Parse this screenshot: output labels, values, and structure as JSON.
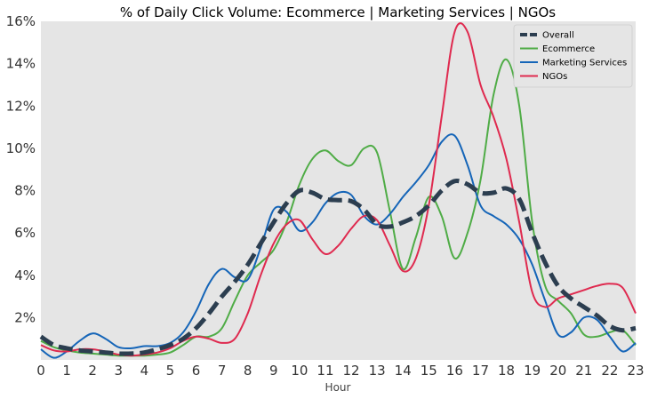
{
  "chart_data": {
    "type": "line",
    "title": "% of Daily Click Volume: Ecommerce | Marketing Services | NGOs",
    "xlabel": "Hour",
    "ylabel": "",
    "xlim": [
      0,
      23
    ],
    "ylim": [
      0,
      16
    ],
    "x_ticks": [
      "0",
      "1",
      "2",
      "3",
      "4",
      "5",
      "6",
      "7",
      "8",
      "9",
      "10",
      "11",
      "12",
      "13",
      "14",
      "15",
      "16",
      "17",
      "18",
      "19",
      "20",
      "21",
      "22",
      "23"
    ],
    "y_ticks": [
      "2%",
      "4%",
      "6%",
      "8%",
      "10%",
      "12%",
      "14%",
      "16%"
    ],
    "y_tick_values": [
      2,
      4,
      6,
      8,
      10,
      12,
      14,
      16
    ],
    "grid": false,
    "legend_position": "top-right",
    "series": [
      {
        "name": "Overall",
        "color": "#2c3e50",
        "style": "dashed",
        "x": [
          0,
          0.5,
          1,
          1.5,
          2,
          2.5,
          3,
          3.5,
          4,
          4.5,
          5,
          5.5,
          6,
          6.5,
          7,
          7.5,
          8,
          8.5,
          9,
          9.5,
          10,
          10.5,
          11,
          11.5,
          12,
          12.5,
          13,
          13.5,
          14,
          14.5,
          15,
          15.5,
          16,
          16.5,
          17,
          17.5,
          18,
          18.5,
          19,
          19.5,
          20,
          20.5,
          21,
          21.5,
          22,
          22.5,
          23
        ],
        "values": [
          1.1,
          0.7,
          0.55,
          0.45,
          0.4,
          0.35,
          0.3,
          0.3,
          0.35,
          0.5,
          0.7,
          1.0,
          1.5,
          2.2,
          3.0,
          3.7,
          4.5,
          5.5,
          6.5,
          7.4,
          8.0,
          7.9,
          7.6,
          7.55,
          7.5,
          7.1,
          6.4,
          6.3,
          6.5,
          6.8,
          7.3,
          8.0,
          8.45,
          8.3,
          7.9,
          7.9,
          8.1,
          7.6,
          6.0,
          4.6,
          3.5,
          2.9,
          2.5,
          2.1,
          1.6,
          1.4,
          1.5
        ]
      },
      {
        "name": "Ecommerce",
        "color": "#4fac46",
        "style": "solid",
        "x": [
          0,
          0.5,
          1,
          1.5,
          2,
          2.5,
          3,
          3.5,
          4,
          4.5,
          5,
          5.5,
          6,
          6.5,
          7,
          7.5,
          8,
          8.5,
          9,
          9.5,
          10,
          10.5,
          11,
          11.5,
          12,
          12.5,
          13,
          13.5,
          14,
          14.5,
          15,
          15.5,
          16,
          16.5,
          17,
          17.5,
          18,
          18.5,
          19,
          19.5,
          20,
          20.5,
          21,
          21.5,
          22,
          22.5,
          23
        ],
        "values": [
          0.9,
          0.6,
          0.45,
          0.35,
          0.3,
          0.25,
          0.2,
          0.2,
          0.2,
          0.25,
          0.35,
          0.7,
          1.1,
          1.1,
          1.5,
          2.8,
          4.0,
          4.6,
          5.2,
          6.5,
          8.3,
          9.5,
          9.9,
          9.4,
          9.2,
          10.0,
          9.8,
          7.0,
          4.3,
          5.8,
          7.7,
          6.8,
          4.8,
          6.0,
          8.5,
          12.5,
          14.2,
          12.0,
          6.5,
          3.5,
          2.8,
          2.2,
          1.2,
          1.1,
          1.3,
          1.4,
          0.7
        ]
      },
      {
        "name": "Marketing Services",
        "color": "#1565b8",
        "style": "solid",
        "x": [
          0,
          0.5,
          1,
          1.5,
          2,
          2.5,
          3,
          3.5,
          4,
          4.5,
          5,
          5.5,
          6,
          6.5,
          7,
          7.5,
          8,
          8.5,
          9,
          9.5,
          10,
          10.5,
          11,
          11.5,
          12,
          12.5,
          13,
          13.5,
          14,
          14.5,
          15,
          15.5,
          16,
          16.5,
          17,
          17.5,
          18,
          18.5,
          19,
          19.5,
          20,
          20.5,
          21,
          21.5,
          22,
          22.5,
          23
        ],
        "values": [
          0.5,
          0.1,
          0.4,
          0.9,
          1.25,
          1.0,
          0.6,
          0.55,
          0.65,
          0.65,
          0.8,
          1.3,
          2.3,
          3.6,
          4.3,
          3.9,
          3.8,
          5.3,
          7.1,
          7.0,
          6.1,
          6.5,
          7.4,
          7.9,
          7.8,
          6.8,
          6.4,
          6.9,
          7.7,
          8.4,
          9.2,
          10.3,
          10.6,
          9.2,
          7.3,
          6.8,
          6.4,
          5.7,
          4.5,
          2.8,
          1.2,
          1.3,
          2.0,
          1.9,
          1.1,
          0.4,
          0.8
        ]
      },
      {
        "name": "NGOs",
        "color": "#df2a4f",
        "style": "solid",
        "x": [
          0,
          0.5,
          1,
          1.5,
          2,
          2.5,
          3,
          3.5,
          4,
          4.5,
          5,
          5.5,
          6,
          6.5,
          7,
          7.5,
          8,
          8.5,
          9,
          9.5,
          10,
          10.5,
          11,
          11.5,
          12,
          12.5,
          13,
          13.5,
          14,
          14.5,
          15,
          15.5,
          16,
          16.5,
          17,
          17.5,
          18,
          18.5,
          19,
          19.5,
          20,
          20.5,
          21,
          21.5,
          22,
          22.5,
          23
        ],
        "values": [
          0.7,
          0.45,
          0.4,
          0.5,
          0.5,
          0.4,
          0.25,
          0.2,
          0.25,
          0.35,
          0.55,
          0.9,
          1.1,
          1.0,
          0.8,
          1.0,
          2.2,
          4.0,
          5.5,
          6.4,
          6.6,
          5.7,
          5.0,
          5.4,
          6.2,
          6.8,
          6.6,
          5.4,
          4.2,
          4.8,
          7.3,
          11.5,
          15.5,
          15.5,
          13.0,
          11.5,
          9.5,
          6.5,
          3.2,
          2.5,
          2.9,
          3.1,
          3.3,
          3.5,
          3.6,
          3.4,
          2.2
        ]
      }
    ]
  }
}
